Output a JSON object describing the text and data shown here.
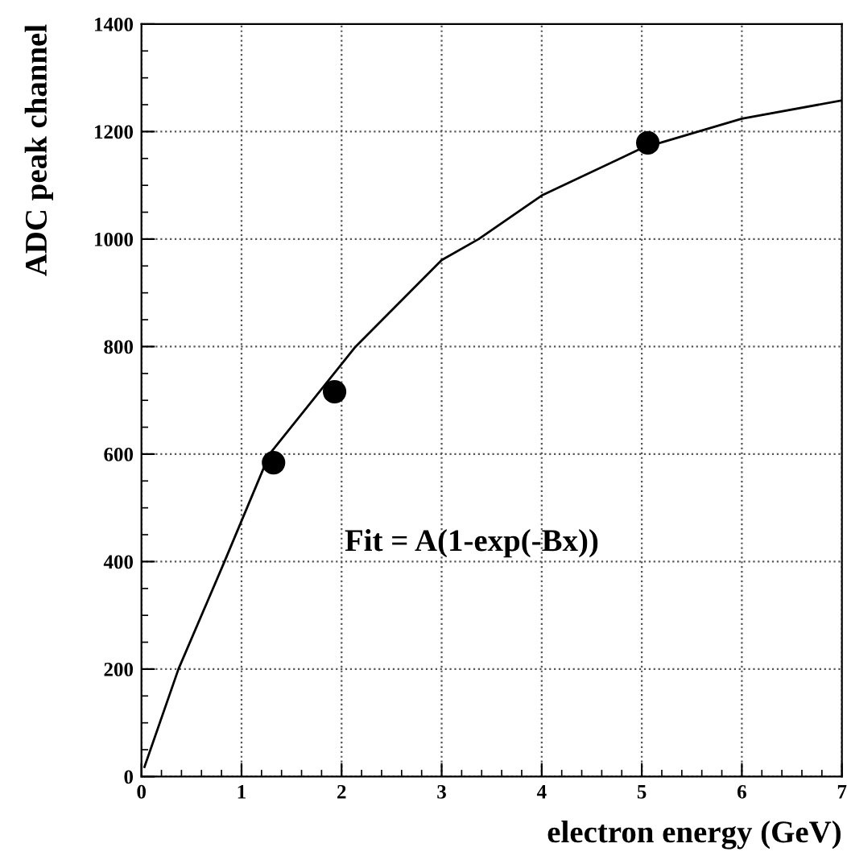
{
  "chart_data": {
    "type": "scatter",
    "xlabel": "electron energy (GeV)",
    "ylabel": "ADC peak channel",
    "xlim": [
      0,
      7
    ],
    "ylim": [
      0,
      1400
    ],
    "xticks": [
      0,
      1,
      2,
      3,
      4,
      5,
      6,
      7
    ],
    "yticks": [
      0,
      200,
      400,
      600,
      800,
      1000,
      1200,
      1400
    ],
    "grid": true,
    "marker": "circle",
    "annotations": [
      "Fit = A(1-exp(-Bx))"
    ],
    "series": [
      {
        "color": "#000000",
        "x": [
          1.32,
          1.93,
          5.06
        ],
        "values": [
          584,
          716,
          1179
        ]
      },
      {
        "type": "line",
        "color": "#000000",
        "marker": "none",
        "line_style": "solid",
        "x": [
          0.03,
          0.37,
          0.83,
          1.28,
          2.14,
          3,
          3.37,
          4,
          5,
          6,
          7
        ],
        "values": [
          18,
          200,
          400,
          600,
          800,
          961,
          1000,
          1081,
          1169,
          1224,
          1258
        ]
      }
    ]
  }
}
